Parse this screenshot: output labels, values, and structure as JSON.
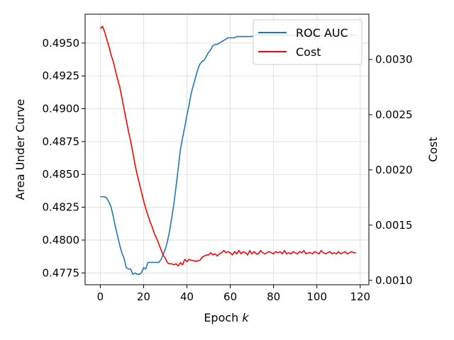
{
  "chart_data": {
    "type": "line",
    "title": "",
    "xlabel": "Epoch",
    "xlabel_var": "k",
    "ylabel": "Area Under Curve",
    "y2label": "Cost",
    "xlim": [
      -7,
      124
    ],
    "ylim": [
      0.4766,
      0.4972
    ],
    "y2lim": [
      0.00096,
      0.00341
    ],
    "xticks": [
      0,
      20,
      40,
      60,
      80,
      100,
      120
    ],
    "xtick_labels": [
      "0",
      "20",
      "40",
      "60",
      "80",
      "100",
      "120"
    ],
    "yticks": [
      0.4775,
      0.48,
      0.4825,
      0.485,
      0.4875,
      0.49,
      0.4925,
      0.495
    ],
    "ytick_labels": [
      "0.4775",
      "0.4800",
      "0.4825",
      "0.4850",
      "0.4875",
      "0.4900",
      "0.4925",
      "0.4950"
    ],
    "y2ticks": [
      0.001,
      0.0015,
      0.002,
      0.0025,
      0.003
    ],
    "y2tick_labels": [
      "0.0010",
      "0.0015",
      "0.0020",
      "0.0025",
      "0.0030"
    ],
    "grid": true,
    "legend_position": "top-right",
    "series": [
      {
        "name": "ROC AUC",
        "axis": "left",
        "color": "#1f77b4",
        "x": [
          0,
          1,
          2,
          3,
          4,
          5,
          6,
          7,
          8,
          9,
          10,
          11,
          12,
          13,
          14,
          15,
          16,
          17,
          18,
          19,
          20,
          21,
          22,
          23,
          24,
          25,
          26,
          27,
          28,
          29,
          30,
          31,
          32,
          33,
          34,
          35,
          36,
          37,
          38,
          39,
          40,
          41,
          42,
          43,
          44,
          45,
          46,
          47,
          48,
          49,
          50,
          51,
          52,
          53,
          54,
          55,
          56,
          57,
          58,
          59,
          60,
          61,
          62,
          63,
          64,
          65,
          66,
          67,
          68,
          69,
          70,
          72,
          75,
          78,
          80,
          85,
          90,
          95,
          100,
          105,
          110,
          115,
          118
        ],
        "y": [
          0.4833,
          0.4833,
          0.4833,
          0.4832,
          0.4829,
          0.4825,
          0.4818,
          0.481,
          0.4803,
          0.4796,
          0.479,
          0.4786,
          0.4779,
          0.4778,
          0.4778,
          0.4774,
          0.4775,
          0.4774,
          0.4774,
          0.4775,
          0.4779,
          0.4778,
          0.4783,
          0.4783,
          0.4783,
          0.4783,
          0.4783,
          0.4783,
          0.4785,
          0.4789,
          0.4793,
          0.4799,
          0.4807,
          0.4817,
          0.4828,
          0.4841,
          0.4855,
          0.4869,
          0.4878,
          0.4886,
          0.4895,
          0.4903,
          0.4912,
          0.4918,
          0.4924,
          0.493,
          0.4934,
          0.4936,
          0.4937,
          0.494,
          0.4943,
          0.4945,
          0.4948,
          0.4949,
          0.4949,
          0.495,
          0.4951,
          0.4952,
          0.4953,
          0.4954,
          0.4954,
          0.4954,
          0.4954,
          0.4955,
          0.4955,
          0.4955,
          0.4955,
          0.4955,
          0.4955,
          0.4955,
          0.4955,
          0.4956,
          0.4956,
          0.4956,
          0.4956,
          0.4956,
          0.4956,
          0.4956,
          0.4956,
          0.4956,
          0.4956,
          0.4956,
          0.4956
        ]
      },
      {
        "name": "Cost",
        "axis": "right",
        "color": "#ff0000",
        "x": [
          0,
          1,
          2,
          3,
          4,
          5,
          6,
          7,
          8,
          9,
          10,
          11,
          12,
          13,
          14,
          15,
          16,
          17,
          18,
          19,
          20,
          21,
          22,
          23,
          24,
          25,
          26,
          27,
          28,
          29,
          30,
          31,
          32,
          33,
          34,
          35,
          36,
          37,
          38,
          39,
          40,
          41,
          42,
          43,
          44,
          45,
          46,
          47,
          48,
          49,
          50,
          51,
          52,
          53,
          54,
          55,
          56,
          57,
          58,
          59,
          60,
          61,
          62,
          63,
          64,
          65,
          66,
          67,
          68,
          69,
          70,
          71,
          72,
          73,
          74,
          75,
          76,
          77,
          78,
          79,
          80,
          81,
          82,
          83,
          84,
          85,
          86,
          87,
          88,
          89,
          90,
          91,
          92,
          93,
          94,
          95,
          96,
          97,
          98,
          99,
          100,
          101,
          102,
          103,
          104,
          105,
          106,
          107,
          108,
          109,
          110,
          111,
          112,
          113,
          114,
          115,
          116,
          117,
          118
        ],
        "y": [
          0.00328,
          0.0033,
          0.00325,
          0.00318,
          0.00312,
          0.00304,
          0.00298,
          0.0029,
          0.00282,
          0.00275,
          0.00265,
          0.00255,
          0.00245,
          0.00235,
          0.00226,
          0.00216,
          0.00205,
          0.00196,
          0.00188,
          0.0018,
          0.00172,
          0.00165,
          0.00159,
          0.00153,
          0.00148,
          0.00142,
          0.00138,
          0.00133,
          0.00128,
          0.00123,
          0.0012,
          0.00116,
          0.00115,
          0.00115,
          0.00114,
          0.00115,
          0.00113,
          0.00116,
          0.00114,
          0.00119,
          0.00117,
          0.00119,
          0.00118,
          0.00118,
          0.00117,
          0.00118,
          0.00118,
          0.00121,
          0.00122,
          0.00123,
          0.00123,
          0.00125,
          0.00123,
          0.00124,
          0.00122,
          0.00124,
          0.00125,
          0.00127,
          0.00125,
          0.00126,
          0.00125,
          0.00123,
          0.00126,
          0.00124,
          0.00127,
          0.00124,
          0.00126,
          0.00125,
          0.00123,
          0.00127,
          0.00124,
          0.00126,
          0.00124,
          0.00124,
          0.00127,
          0.00125,
          0.00124,
          0.00125,
          0.00126,
          0.00125,
          0.00124,
          0.00126,
          0.00125,
          0.00126,
          0.00124,
          0.00127,
          0.00124,
          0.00125,
          0.00124,
          0.00126,
          0.00125,
          0.00124,
          0.00126,
          0.00125,
          0.00127,
          0.00124,
          0.00125,
          0.00125,
          0.00124,
          0.00126,
          0.00125,
          0.00124,
          0.00127,
          0.00125,
          0.00124,
          0.00125,
          0.00126,
          0.00124,
          0.00125,
          0.00124,
          0.00126,
          0.00124,
          0.00125,
          0.00126,
          0.00124,
          0.00125,
          0.00126,
          0.00125,
          0.00125
        ]
      }
    ]
  }
}
